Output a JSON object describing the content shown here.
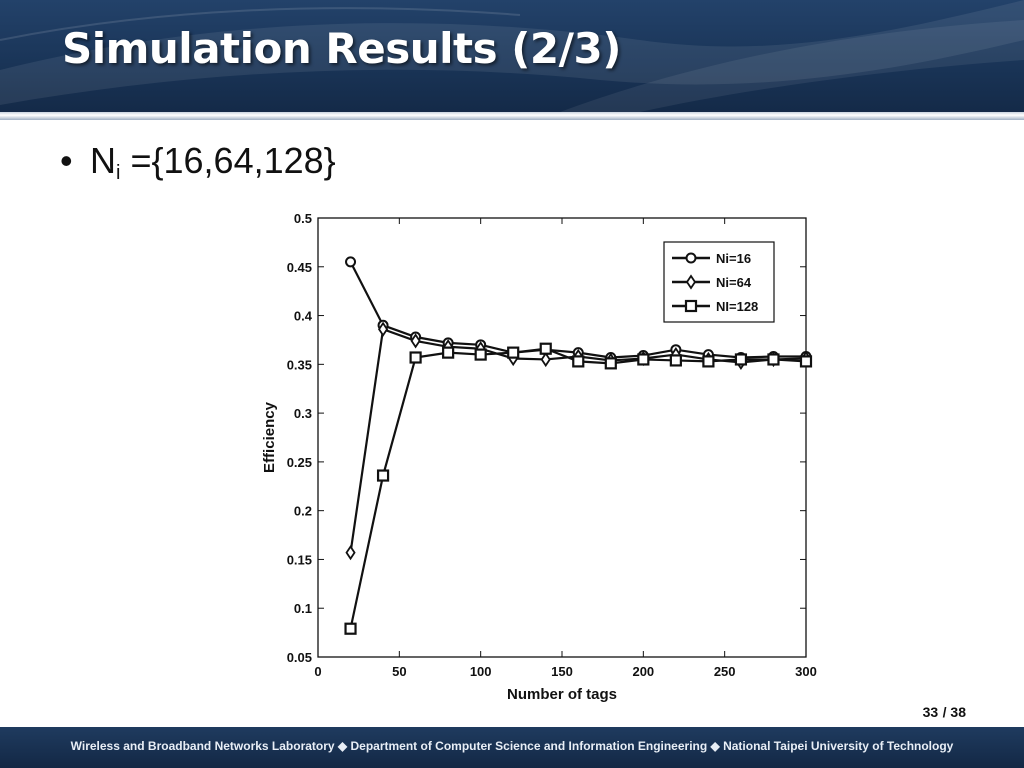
{
  "slide": {
    "title": "Simulation Results (2/3)",
    "bullet_marker": "•",
    "bullet_main": "N",
    "bullet_sub": "i",
    "bullet_rest": " ={16,64,128}",
    "page_current": "33",
    "page_total": "/ 38",
    "footer": "Wireless and Broadband Networks Laboratory ◆ Department of Computer Science and Information Engineering ◆ National Taipei University of Technology"
  },
  "colors": {
    "header": "#1a3558",
    "footer": "#132845",
    "series_line": "#111111"
  },
  "chart_data": {
    "type": "line",
    "title": "",
    "xlabel": "Number of tags",
    "ylabel": "Efficiency",
    "xlim": [
      0,
      300
    ],
    "ylim": [
      0.05,
      0.5
    ],
    "xticks": [
      0,
      50,
      100,
      150,
      200,
      250,
      300
    ],
    "xtick_labels": [
      "0",
      "50",
      "100",
      "150",
      "200",
      "250",
      "300"
    ],
    "yticks": [
      0.05,
      0.1,
      0.15,
      0.2,
      0.25,
      0.3,
      0.35,
      0.4,
      0.45,
      0.5
    ],
    "ytick_labels": [
      "0.05",
      "0.1",
      "0.15",
      "0.2",
      "0.25",
      "0.3",
      "0.35",
      "0.4",
      "0.45",
      "0.5"
    ],
    "grid": false,
    "legend_position": "top-right",
    "x": [
      20,
      40,
      60,
      80,
      100,
      120,
      140,
      160,
      180,
      200,
      220,
      240,
      260,
      280,
      300
    ],
    "series": [
      {
        "name": "Ni=16",
        "marker": "circle",
        "values": [
          0.455,
          0.39,
          0.378,
          0.372,
          0.37,
          0.362,
          0.365,
          0.362,
          0.357,
          0.359,
          0.365,
          0.36,
          0.357,
          0.358,
          0.358
        ]
      },
      {
        "name": "Ni=64",
        "marker": "diamond",
        "values": [
          0.157,
          0.386,
          0.374,
          0.368,
          0.366,
          0.356,
          0.355,
          0.358,
          0.354,
          0.356,
          0.36,
          0.355,
          0.352,
          0.355,
          0.356
        ]
      },
      {
        "name": "NI=128",
        "marker": "square",
        "values": [
          0.079,
          0.236,
          0.357,
          0.362,
          0.36,
          0.362,
          0.366,
          0.353,
          0.351,
          0.355,
          0.354,
          0.353,
          0.355,
          0.355,
          0.353
        ]
      }
    ]
  }
}
